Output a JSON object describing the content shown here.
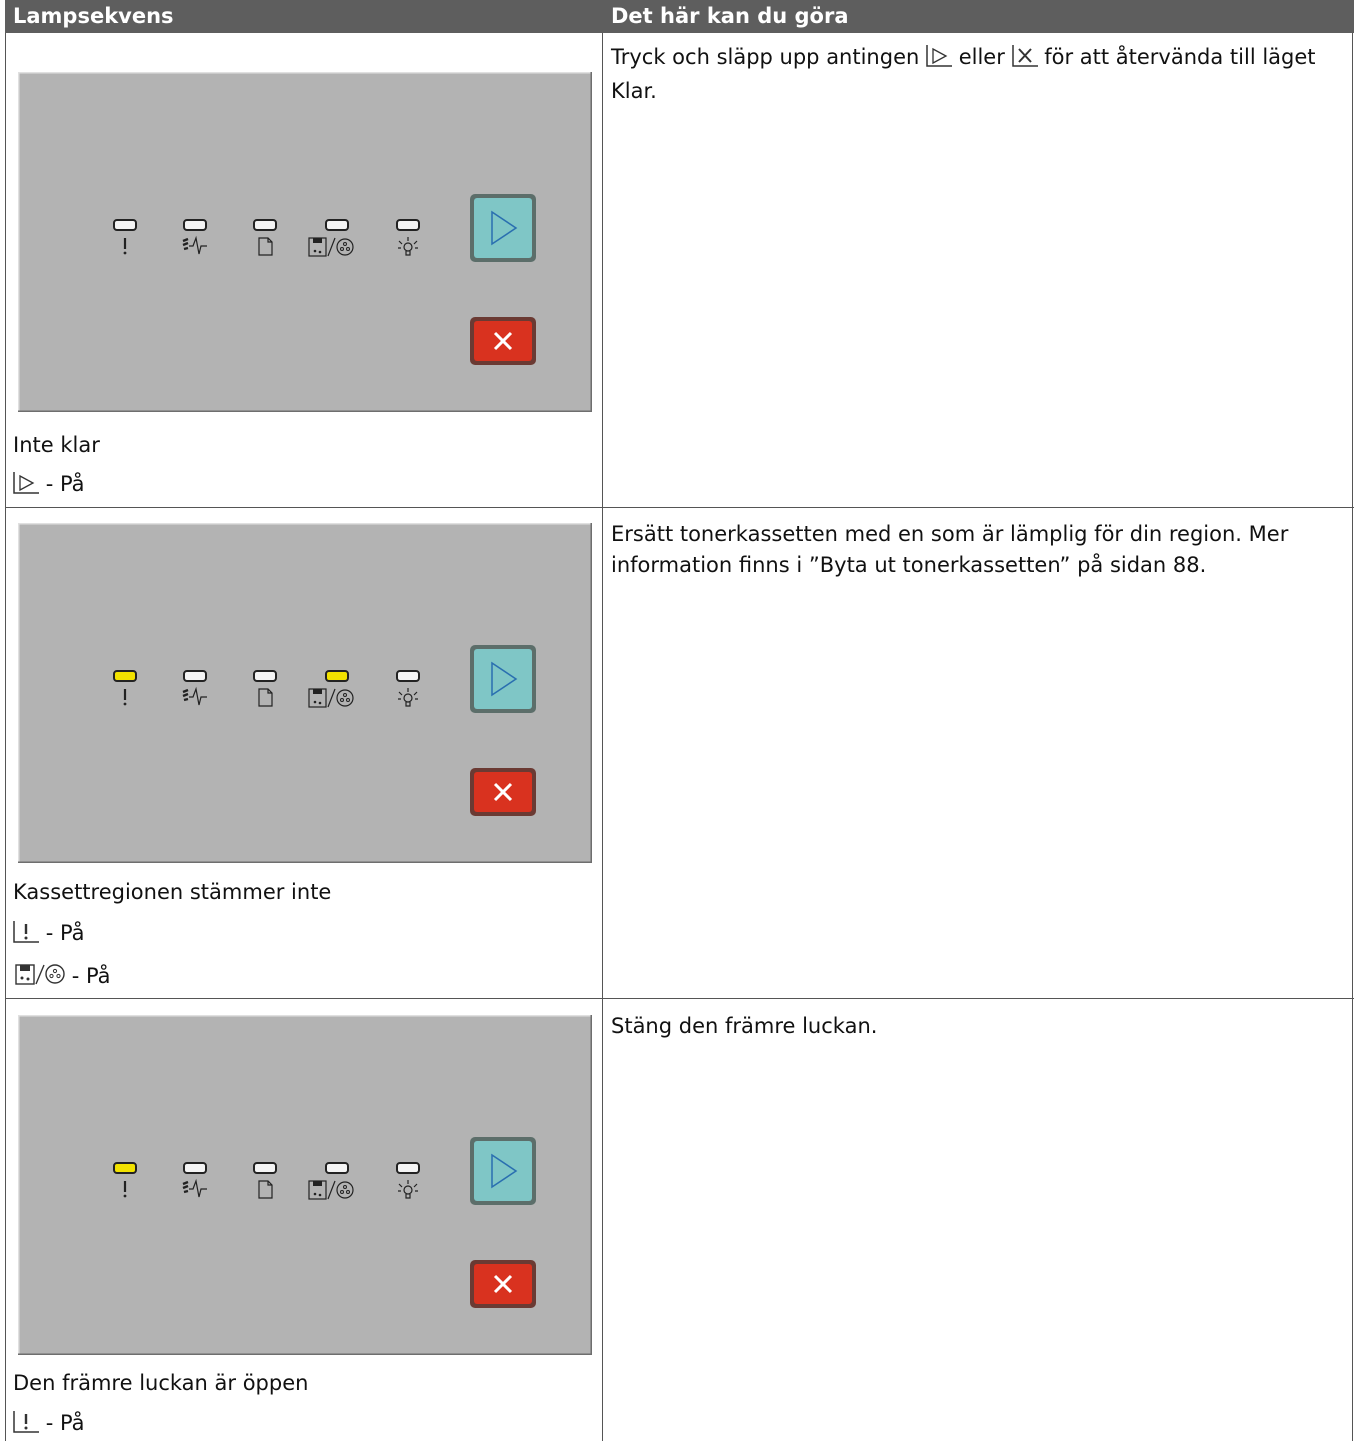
{
  "table": {
    "headers": [
      "Lampsekvens",
      "Det här kan du göra"
    ],
    "rows": [
      {
        "status": "Inte klar",
        "lamps": [
          "- På"
        ],
        "action": [
          "Tryck och släpp upp antingen",
          "eller",
          "för att återvända till läget Klar."
        ]
      },
      {
        "status": "Kassettregionen stämmer inte",
        "lamps": [
          "- På",
          "- På"
        ],
        "action": [
          "Ersätt tonerkassetten med en som är lämplig för din region. Mer information finns i ”Byta ut tonerkassetten” på sidan 88."
        ]
      },
      {
        "status": "Den främre luckan är öppen",
        "lamps": [
          "- På"
        ],
        "action": [
          "Stäng den främre luckan."
        ]
      }
    ]
  }
}
